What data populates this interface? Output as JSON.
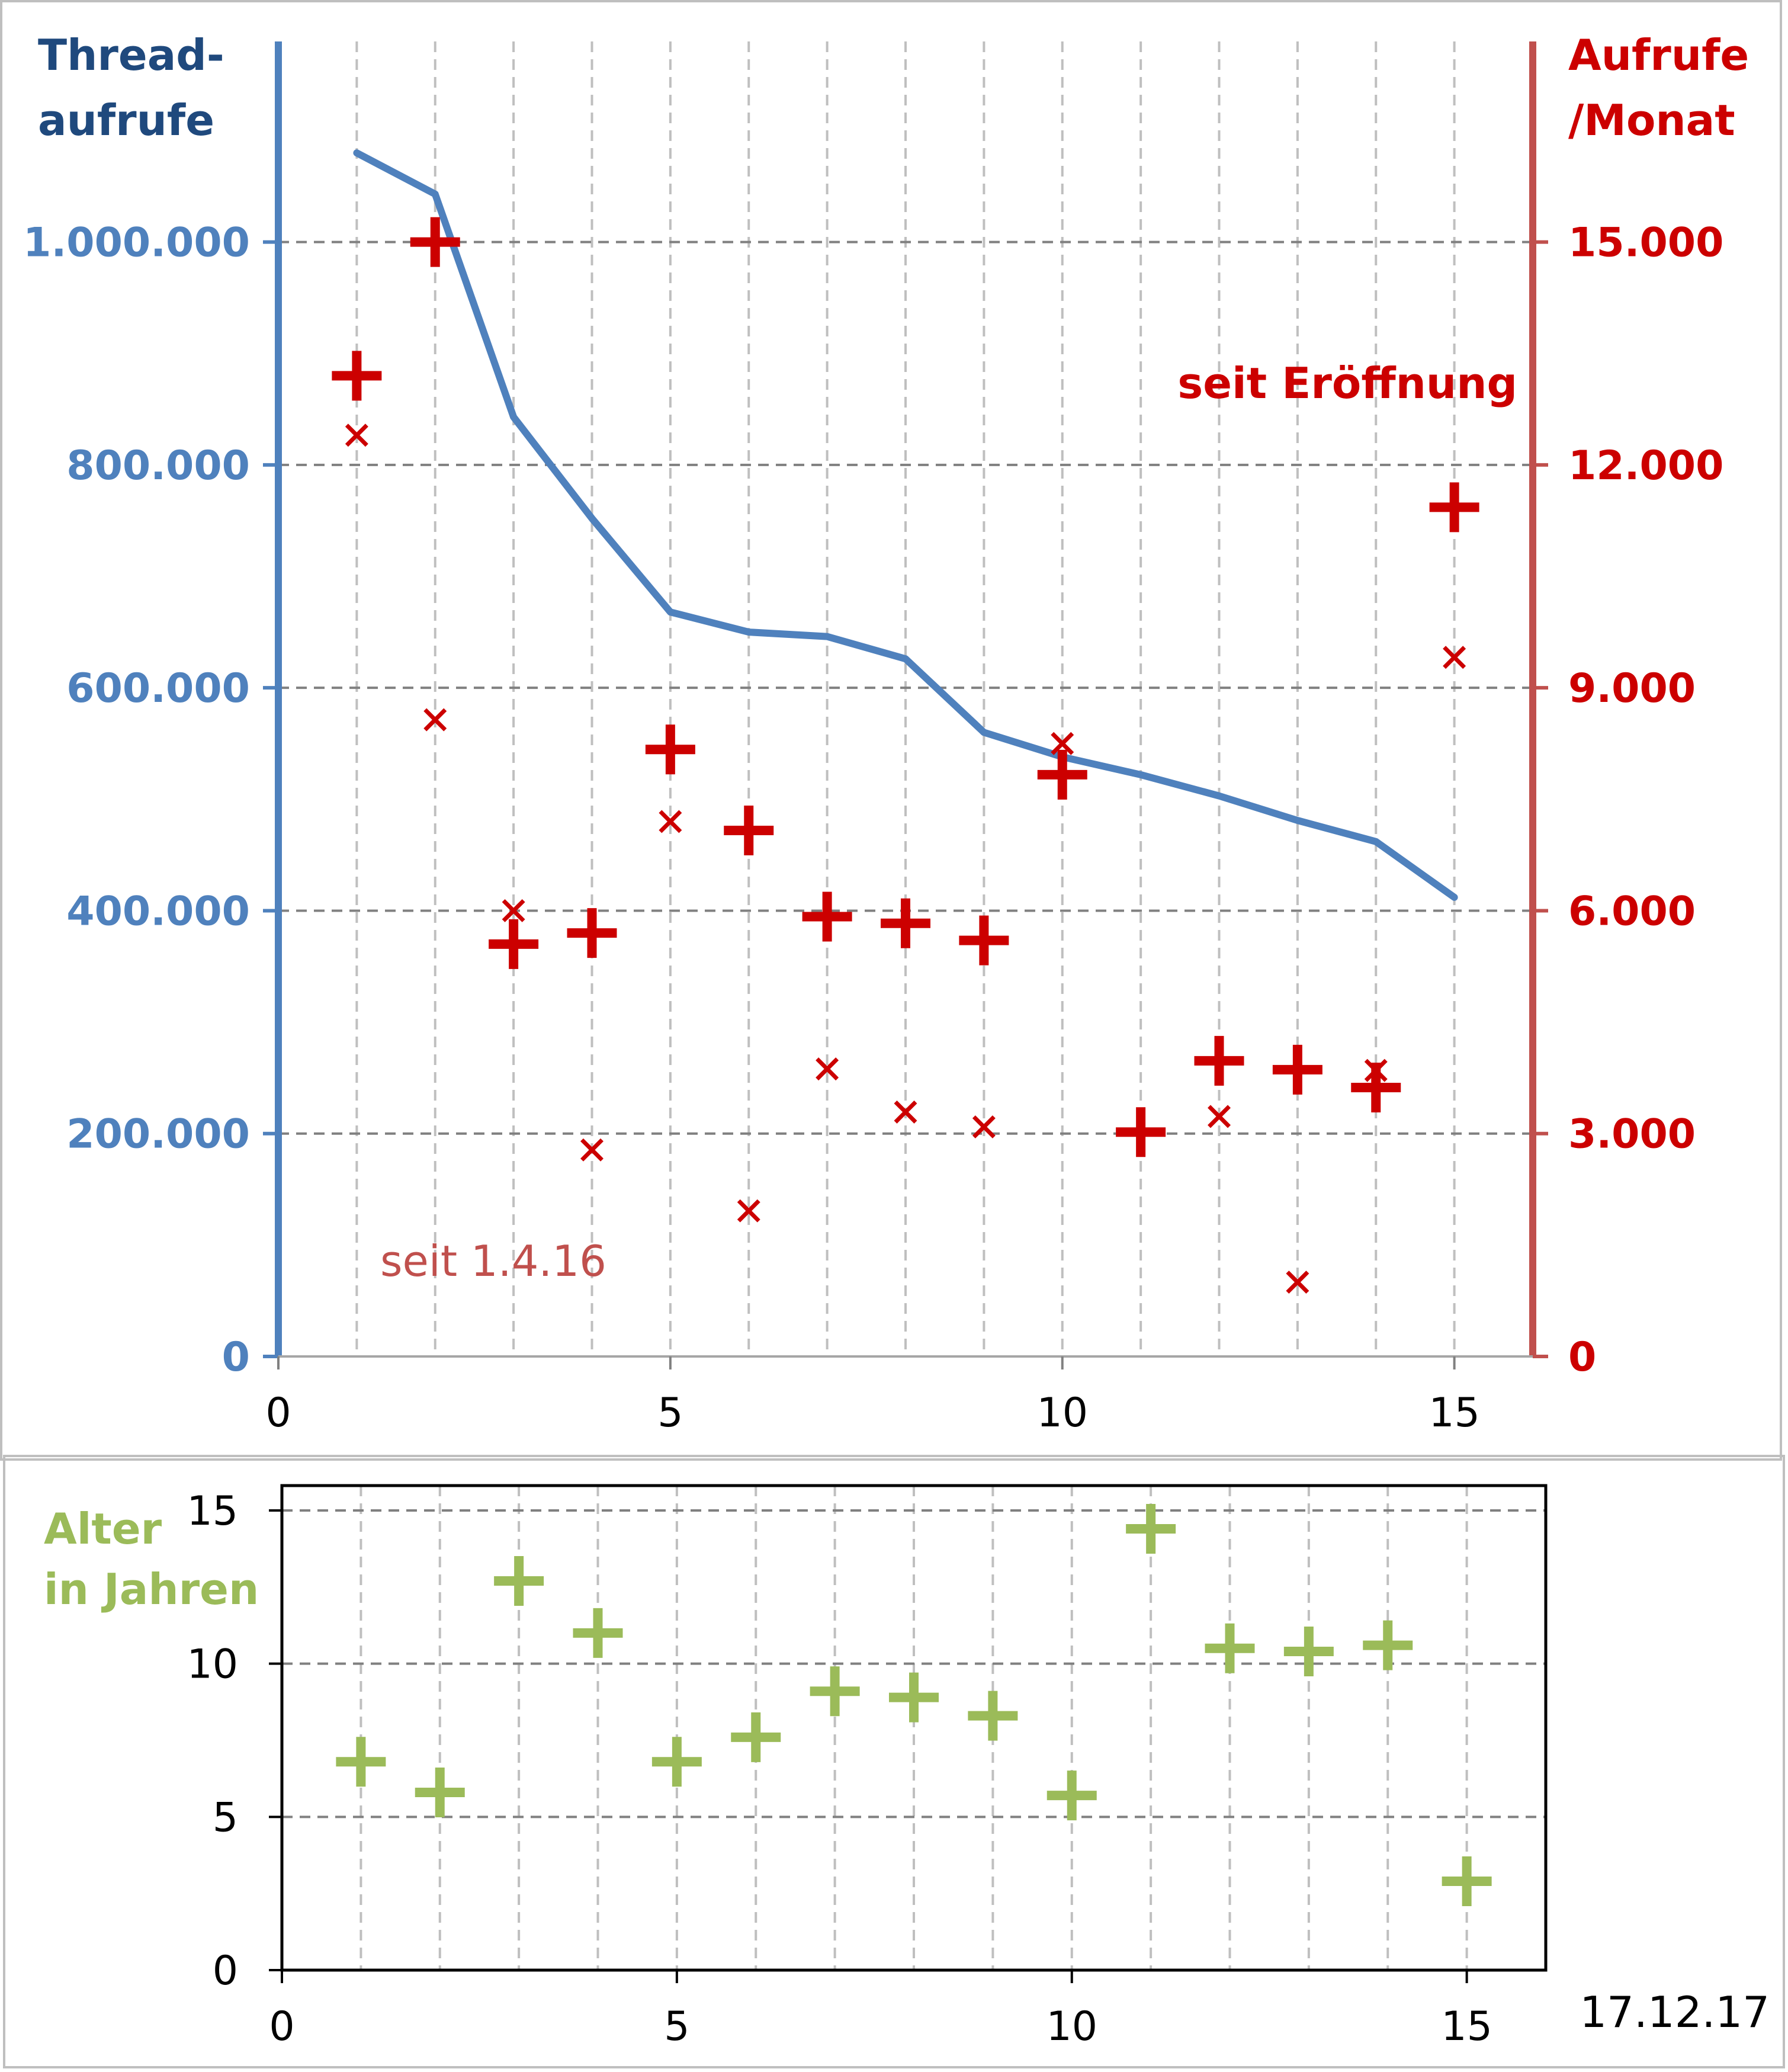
{
  "chart_data": [
    {
      "type": "scatter",
      "left_axis_title": [
        "Thread-",
        "aufrufe"
      ],
      "right_axis_title": [
        "Aufrufe",
        "/Monat"
      ],
      "left_axis_color": "#4f81bd",
      "right_axis_color": "#c0504d",
      "series_color": "#cc0000",
      "x_ticks": [
        "0",
        "5",
        "10",
        "15"
      ],
      "x_tick_values": [
        0,
        5,
        10,
        15
      ],
      "xlim": [
        0,
        16
      ],
      "y_left_ticks": [
        "0",
        "200.000",
        "400.000",
        "600.000",
        "800.000",
        "1.000.000"
      ],
      "y_left_tick_values": [
        0,
        200000,
        400000,
        600000,
        800000,
        1000000
      ],
      "y_left_lim": [
        0,
        1180000
      ],
      "y_right_ticks": [
        "0",
        "3.000",
        "6.000",
        "9.000",
        "12.000",
        "15.000"
      ],
      "y_right_tick_values": [
        0,
        3000,
        6000,
        9000,
        12000,
        15000
      ],
      "y_right_lim": [
        0,
        17700
      ],
      "grid": true,
      "annotations": {
        "since_opening": "seit Eröffnung",
        "since_date": "seit 1.4.16"
      },
      "series": [
        {
          "kind": "line",
          "axis": "left",
          "color": "#4f81bd",
          "x": [
            1,
            2,
            3,
            4,
            5,
            6,
            7,
            8,
            9,
            10,
            11,
            12,
            13,
            14,
            15
          ],
          "values": [
            1080000,
            1043000,
            843000,
            752000,
            668000,
            650000,
            646000,
            626000,
            560000,
            538000,
            522000,
            503000,
            481000,
            462000,
            412000
          ]
        },
        {
          "kind": "plus",
          "axis": "right",
          "color": "#cc0000",
          "x": [
            1,
            2,
            3,
            4,
            5,
            6,
            7,
            8,
            9,
            10,
            11,
            12,
            13,
            14,
            15
          ],
          "values": [
            13200,
            15000,
            5550,
            5700,
            8170,
            7080,
            5920,
            5830,
            5600,
            7830,
            3020,
            3980,
            3860,
            3620,
            11430
          ]
        },
        {
          "kind": "cross",
          "axis": "right",
          "color": "#cc0000",
          "x": [
            1,
            2,
            3,
            4,
            5,
            6,
            7,
            8,
            9,
            10,
            11,
            12,
            13,
            14,
            15
          ],
          "values": [
            12400,
            8570,
            6000,
            2780,
            7200,
            1960,
            3870,
            3290,
            3090,
            8250,
            null,
            3230,
            1000,
            3850,
            9410
          ]
        }
      ]
    },
    {
      "type": "scatter",
      "y_axis_title": [
        "Alter",
        "in Jahren"
      ],
      "title_color": "#9bbb59",
      "x_ticks": [
        "0",
        "5",
        "10",
        "15"
      ],
      "x_tick_values": [
        0,
        5,
        10,
        15
      ],
      "xlim": [
        0,
        16
      ],
      "y_ticks": [
        "0",
        "5",
        "10",
        "15"
      ],
      "y_tick_values": [
        0,
        5,
        10,
        15
      ],
      "ylim": [
        0,
        15
      ],
      "grid": true,
      "series": [
        {
          "kind": "plus",
          "color": "#9bbb59",
          "x": [
            1,
            2,
            3,
            4,
            5,
            6,
            7,
            8,
            9,
            10,
            11,
            12,
            13,
            14,
            15
          ],
          "values": [
            6.8,
            5.8,
            12.7,
            11.0,
            6.8,
            7.6,
            9.1,
            8.9,
            8.3,
            5.7,
            14.4,
            10.5,
            10.4,
            10.6,
            2.9
          ]
        }
      ]
    }
  ],
  "date_stamp": "17.12.17"
}
